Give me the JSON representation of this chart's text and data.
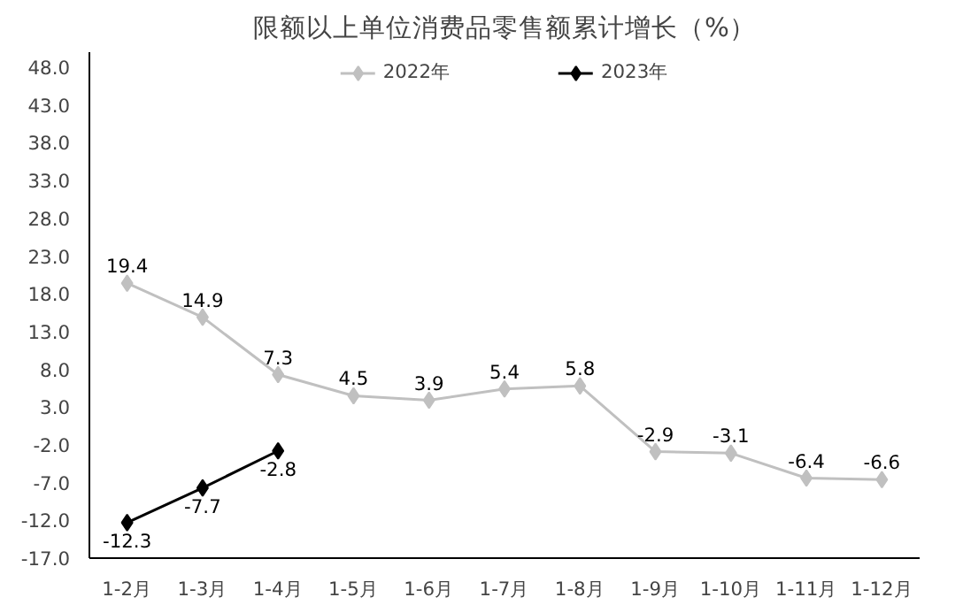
{
  "chart_data": {
    "type": "line",
    "title": "限额以上单位消费品零售额累计增长（%）",
    "categories": [
      "1-2月",
      "1-3月",
      "1-4月",
      "1-5月",
      "1-6月",
      "1-7月",
      "1-8月",
      "1-9月",
      "1-10月",
      "1-11月",
      "1-12月"
    ],
    "series": [
      {
        "name": "2022年",
        "color": "#c0c0c0",
        "values": [
          19.4,
          14.9,
          7.3,
          4.5,
          3.9,
          5.4,
          5.8,
          -2.9,
          -3.1,
          -6.4,
          -6.6
        ]
      },
      {
        "name": "2023年",
        "color": "#000000",
        "values": [
          -12.3,
          -7.7,
          -2.8,
          null,
          null,
          null,
          null,
          null,
          null,
          null,
          null
        ]
      }
    ],
    "ylim": [
      -17,
      50
    ],
    "yticks": [
      {
        "value": -17,
        "label": "-17.0"
      },
      {
        "value": -12,
        "label": "-12.0"
      },
      {
        "value": -7,
        "label": "-7.0"
      },
      {
        "value": -2,
        "label": "-2.0"
      },
      {
        "value": 3,
        "label": "3.0"
      },
      {
        "value": 8,
        "label": "8.0"
      },
      {
        "value": 13,
        "label": "13.0"
      },
      {
        "value": 18,
        "label": "18.0"
      },
      {
        "value": 23,
        "label": "23.0"
      },
      {
        "value": 28,
        "label": "28.0"
      },
      {
        "value": 33,
        "label": "33.0"
      },
      {
        "value": 38,
        "label": "38.0"
      },
      {
        "value": 43,
        "label": "43.0"
      },
      {
        "value": 48,
        "label": "48.0"
      }
    ],
    "data_labels": true,
    "marker": "diamond",
    "line_style": "solid",
    "grid": false,
    "legend": "top"
  }
}
